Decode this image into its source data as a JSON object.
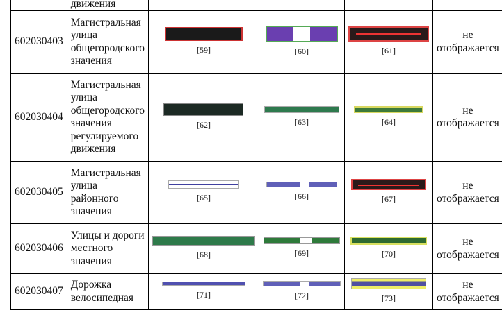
{
  "table": {
    "rows": [
      {
        "code": "",
        "name": [
          "движения"
        ],
        "refs": [
          "",
          "",
          ""
        ],
        "status": []
      },
      {
        "code": "602030403",
        "name": [
          "Магистральная",
          "улица",
          "общегородского",
          "значения"
        ],
        "refs": [
          "[59]",
          "[60]",
          "[61]"
        ],
        "status": [
          "не",
          "отображается"
        ]
      },
      {
        "code": "602030404",
        "name": [
          "Магистральная",
          "улица",
          "общегородского",
          "значения",
          "регулируемого",
          "движения"
        ],
        "refs": [
          "[62]",
          "[63]",
          "[64]"
        ],
        "status": [
          "не",
          "отображается"
        ]
      },
      {
        "code": "602030405",
        "name": [
          "Магистральная",
          "улица",
          "районного",
          "значения"
        ],
        "refs": [
          "[65]",
          "[66]",
          "[67]"
        ],
        "status": [
          "не",
          "отображается"
        ]
      },
      {
        "code": "602030406",
        "name": [
          "Улицы и дороги",
          "местного",
          "значения"
        ],
        "refs": [
          "[68]",
          "[69]",
          "[70]"
        ],
        "status": [
          "не",
          "отображается"
        ]
      },
      {
        "code": "602030407",
        "name": [
          "Дорожка",
          "велосипедная"
        ],
        "refs": [
          "[71]",
          "[72]",
          "[73]"
        ],
        "status": [
          "не",
          "отображается"
        ]
      }
    ]
  }
}
